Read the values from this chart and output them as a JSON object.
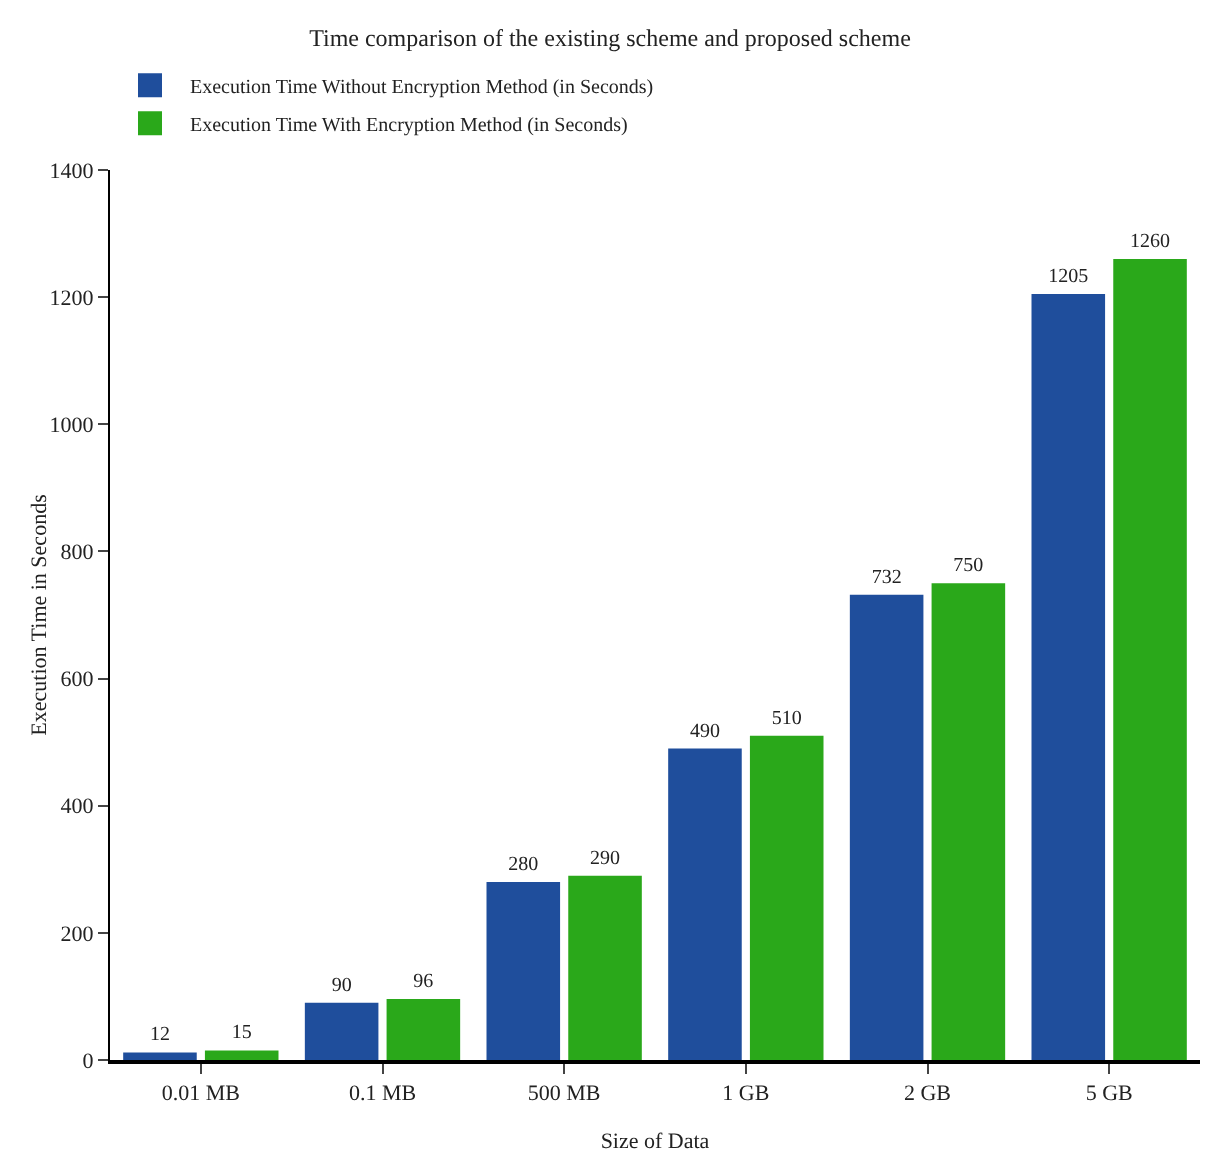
{
  "chart_data": {
    "type": "bar",
    "title": "Time comparison of the existing scheme and proposed scheme",
    "xlabel": "Size of Data",
    "ylabel": "Execution Time in Seconds",
    "categories": [
      "0.01 MB",
      "0.1 MB",
      "500 MB",
      "1 GB",
      "2 GB",
      "5 GB"
    ],
    "series": [
      {
        "name": "Execution Time Without Encryption Method (in Seconds)",
        "color": "#1f4e9c",
        "values": [
          12,
          90,
          280,
          490,
          732,
          1205
        ]
      },
      {
        "name": "Execution Time With Encryption Method (in Seconds)",
        "color": "#2aa81a",
        "values": [
          15,
          96,
          290,
          510,
          750,
          1260
        ]
      }
    ],
    "ylim": [
      0,
      1400
    ],
    "yticks": [
      0,
      200,
      400,
      600,
      800,
      1000,
      1200,
      1400
    ],
    "grid": false,
    "legend": "top left",
    "data_labels": true
  }
}
